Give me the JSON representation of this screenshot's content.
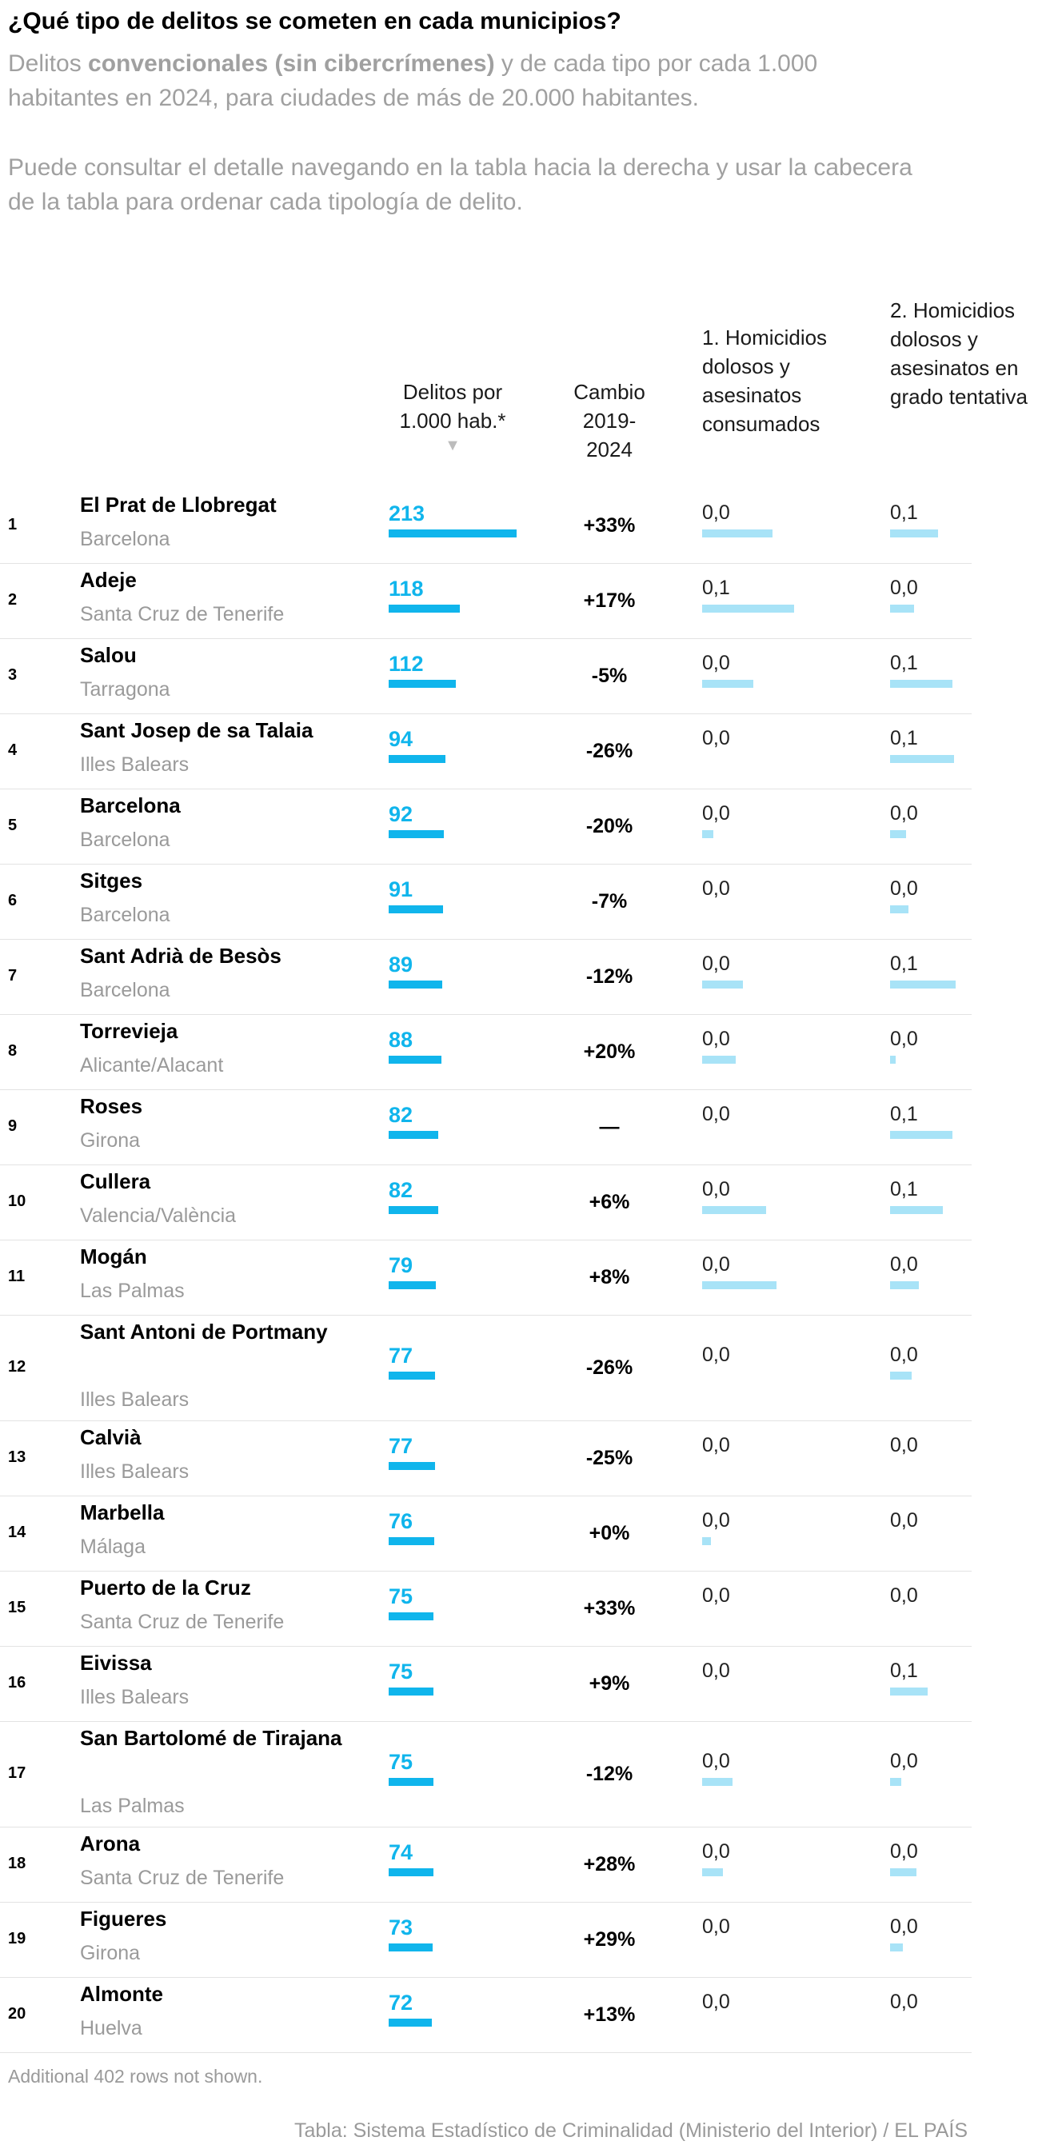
{
  "header": {
    "title": "¿Qué tipo de delitos se cometen en cada municipios?",
    "subtitle_pre": "Delitos ",
    "subtitle_bold": "convencionales (sin cibercrímenes)",
    "subtitle_post": " y de cada tipo por cada 1.000 habitantes en 2024, para ciudades de más de 20.000 habitantes.",
    "note": "Puede consultar el detalle navegando en la tabla hacia la derecha y usar la cabecera de la tabla para ordenar cada tipología de delito."
  },
  "columns": {
    "rate": "Delitos por 1.000 hab.*",
    "sort_indicator": "▼",
    "change": "Cambio 2019-2024",
    "cat1": "1. Homicidios dolosos y asesinatos consumados",
    "cat2": "2. Homicidios dolosos y asesinatos en grado tentativa"
  },
  "rows": [
    {
      "rank": "1",
      "name": "El Prat de Llobregat",
      "province": "Barcelona",
      "rate": "213",
      "rate_value": 213,
      "change": "+33%",
      "cat1": "0,0",
      "cat1_bar": 0.55,
      "cat2": "0,1",
      "cat2_bar": 0.6
    },
    {
      "rank": "2",
      "name": "Adeje",
      "province": "Santa Cruz de Tenerife",
      "rate": "118",
      "rate_value": 118,
      "change": "+17%",
      "cat1": "0,1",
      "cat1_bar": 0.72,
      "cat2": "0,0",
      "cat2_bar": 0.3
    },
    {
      "rank": "3",
      "name": "Salou",
      "province": "Tarragona",
      "rate": "112",
      "rate_value": 112,
      "change": "-5%",
      "cat1": "0,0",
      "cat1_bar": 0.4,
      "cat2": "0,1",
      "cat2_bar": 0.78
    },
    {
      "rank": "4",
      "name": "Sant Josep de sa Talaia",
      "province": "Illes Balears",
      "rate": "94",
      "rate_value": 94,
      "change": "-26%",
      "cat1": "0,0",
      "cat1_bar": 0,
      "cat2": "0,1",
      "cat2_bar": 0.8
    },
    {
      "rank": "5",
      "name": "Barcelona",
      "province": "Barcelona",
      "rate": "92",
      "rate_value": 92,
      "change": "-20%",
      "cat1": "0,0",
      "cat1_bar": 0.09,
      "cat2": "0,0",
      "cat2_bar": 0.2
    },
    {
      "rank": "6",
      "name": "Sitges",
      "province": "Barcelona",
      "rate": "91",
      "rate_value": 91,
      "change": "-7%",
      "cat1": "0,0",
      "cat1_bar": 0,
      "cat2": "0,0",
      "cat2_bar": 0.23
    },
    {
      "rank": "7",
      "name": "Sant Adrià de Besòs",
      "province": "Barcelona",
      "rate": "89",
      "rate_value": 89,
      "change": "-12%",
      "cat1": "0,0",
      "cat1_bar": 0.32,
      "cat2": "0,1",
      "cat2_bar": 0.82
    },
    {
      "rank": "8",
      "name": "Torrevieja",
      "province": "Alicante/Alacant",
      "rate": "88",
      "rate_value": 88,
      "change": "+20%",
      "cat1": "0,0",
      "cat1_bar": 0.26,
      "cat2": "0,0",
      "cat2_bar": 0.07
    },
    {
      "rank": "9",
      "name": "Roses",
      "province": "Girona",
      "rate": "82",
      "rate_value": 82,
      "change": "—",
      "cat1": "0,0",
      "cat1_bar": 0,
      "cat2": "0,1",
      "cat2_bar": 0.78
    },
    {
      "rank": "10",
      "name": "Cullera",
      "province": "Valencia/València",
      "rate": "82",
      "rate_value": 82,
      "change": "+6%",
      "cat1": "0,0",
      "cat1_bar": 0.5,
      "cat2": "0,1",
      "cat2_bar": 0.66
    },
    {
      "rank": "11",
      "name": "Mogán",
      "province": "Las Palmas",
      "rate": "79",
      "rate_value": 79,
      "change": "+8%",
      "cat1": "0,0",
      "cat1_bar": 0.58,
      "cat2": "0,0",
      "cat2_bar": 0.36
    },
    {
      "rank": "12",
      "name": "Sant Antoni de Portmany",
      "province": "Illes Balears",
      "rate": "77",
      "rate_value": 77,
      "change": "-26%",
      "cat1": "0,0",
      "cat1_bar": 0,
      "cat2": "0,0",
      "cat2_bar": 0.27
    },
    {
      "rank": "13",
      "name": "Calvià",
      "province": "Illes Balears",
      "rate": "77",
      "rate_value": 77,
      "change": "-25%",
      "cat1": "0,0",
      "cat1_bar": 0,
      "cat2": "0,0",
      "cat2_bar": 0
    },
    {
      "rank": "14",
      "name": "Marbella",
      "province": "Málaga",
      "rate": "76",
      "rate_value": 76,
      "change": "+0%",
      "cat1": "0,0",
      "cat1_bar": 0.07,
      "cat2": "0,0",
      "cat2_bar": 0
    },
    {
      "rank": "15",
      "name": "Puerto de la Cruz",
      "province": "Santa Cruz de Tenerife",
      "rate": "75",
      "rate_value": 75,
      "change": "+33%",
      "cat1": "0,0",
      "cat1_bar": 0,
      "cat2": "0,0",
      "cat2_bar": 0
    },
    {
      "rank": "16",
      "name": "Eivissa",
      "province": "Illes Balears",
      "rate": "75",
      "rate_value": 75,
      "change": "+9%",
      "cat1": "0,0",
      "cat1_bar": 0,
      "cat2": "0,1",
      "cat2_bar": 0.47
    },
    {
      "rank": "17",
      "name": "San Bartolomé de Tirajana",
      "province": "Las Palmas",
      "rate": "75",
      "rate_value": 75,
      "change": "-12%",
      "cat1": "0,0",
      "cat1_bar": 0.24,
      "cat2": "0,0",
      "cat2_bar": 0.14
    },
    {
      "rank": "18",
      "name": "Arona",
      "province": "Santa Cruz de Tenerife",
      "rate": "74",
      "rate_value": 74,
      "change": "+28%",
      "cat1": "0,0",
      "cat1_bar": 0.16,
      "cat2": "0,0",
      "cat2_bar": 0.33
    },
    {
      "rank": "19",
      "name": "Figueres",
      "province": "Girona",
      "rate": "73",
      "rate_value": 73,
      "change": "+29%",
      "cat1": "0,0",
      "cat1_bar": 0,
      "cat2": "0,0",
      "cat2_bar": 0.16
    },
    {
      "rank": "20",
      "name": "Almonte",
      "province": "Huelva",
      "rate": "72",
      "rate_value": 72,
      "change": "+13%",
      "cat1": "0,0",
      "cat1_bar": 0,
      "cat2": "0,0",
      "cat2_bar": 0
    }
  ],
  "footer": {
    "more_rows": "Additional 402 rows not shown.",
    "source": "Tabla: Sistema Estadístico de Criminalidad (Ministerio del Interior) / EL PAÍS"
  },
  "colors": {
    "rate_bar": "#10b5ec",
    "category_bar": "#a8e3f7",
    "muted_text": "#9a9a9a"
  }
}
